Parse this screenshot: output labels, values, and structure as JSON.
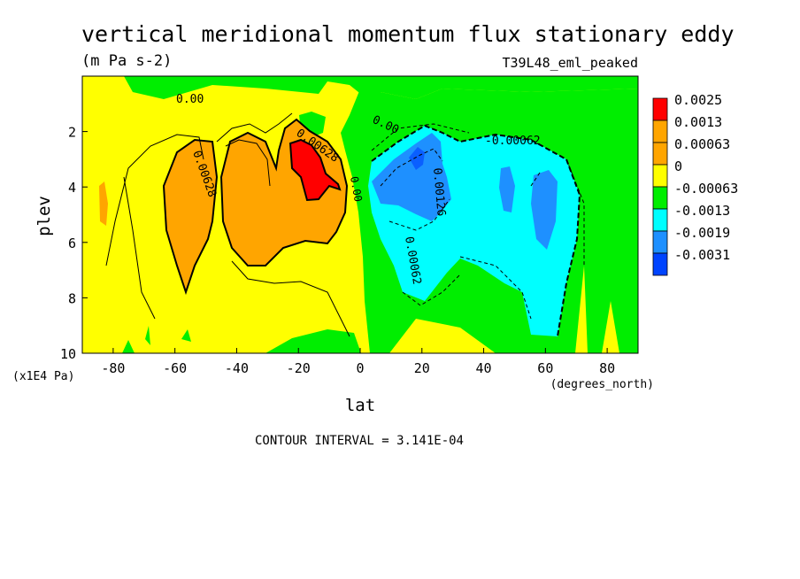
{
  "chart_data": {
    "type": "contour",
    "title": "vertical meridional momentum flux stationary eddy",
    "units": "(m Pa s-2)",
    "run_label": "T39L48_eml_peaked",
    "xlabel": "lat",
    "xunits": "(degrees_north)",
    "ylabel": "plev",
    "yunits": "(x1E4 Pa)",
    "xlim": [
      -90,
      90
    ],
    "ylim": [
      10,
      0
    ],
    "xticks": [
      "-80",
      "-60",
      "-40",
      "-20",
      "0",
      "20",
      "40",
      "60",
      "80"
    ],
    "xtick_values": [
      -80,
      -60,
      -40,
      -20,
      0,
      20,
      40,
      60,
      80
    ],
    "yticks": [
      "2",
      "4",
      "6",
      "8",
      "10"
    ],
    "ytick_values": [
      2,
      4,
      6,
      8,
      10
    ],
    "footer": "CONTOUR INTERVAL = 3.141E-04",
    "legend": {
      "placement": "right",
      "levels": [
        {
          "label": "0.0025",
          "color": "#ff0000"
        },
        {
          "label": "0.0013",
          "color": "#ffa500"
        },
        {
          "label": "0.00063",
          "color": "#ffa500"
        },
        {
          "label": "0",
          "color": "#ffff00"
        },
        {
          "label": "-0.00063",
          "color": "#00ee00"
        },
        {
          "label": "-0.0013",
          "color": "#00ffff"
        },
        {
          "label": "-0.0019",
          "color": "#1e90ff"
        },
        {
          "label": "-0.0031",
          "color": "#0044ff"
        }
      ],
      "swatches": [
        "#ff0000",
        "#ffa500",
        "#ffa500",
        "#ffff00",
        "#00ee00",
        "#00ffff",
        "#1e90ff",
        "#0044ff"
      ]
    },
    "contour_labels": [
      {
        "text": "0.00",
        "lat": -54,
        "plev": 0.75
      },
      {
        "text": "0.00",
        "lat": 8,
        "plev": 1.3
      },
      {
        "text": "-0.00062",
        "lat": 50,
        "plev": 1.9
      },
      {
        "text": "0.00628",
        "lat": -52,
        "plev": 3.6
      },
      {
        "text": "0.00628",
        "lat": -14,
        "plev": 2.7
      },
      {
        "text": "0.00",
        "lat": -1,
        "plev": 4.0
      },
      {
        "text": "0.00126",
        "lat": 23,
        "plev": 4.6
      },
      {
        "text": "0.00062",
        "lat": 15,
        "plev": 6.8
      }
    ]
  }
}
